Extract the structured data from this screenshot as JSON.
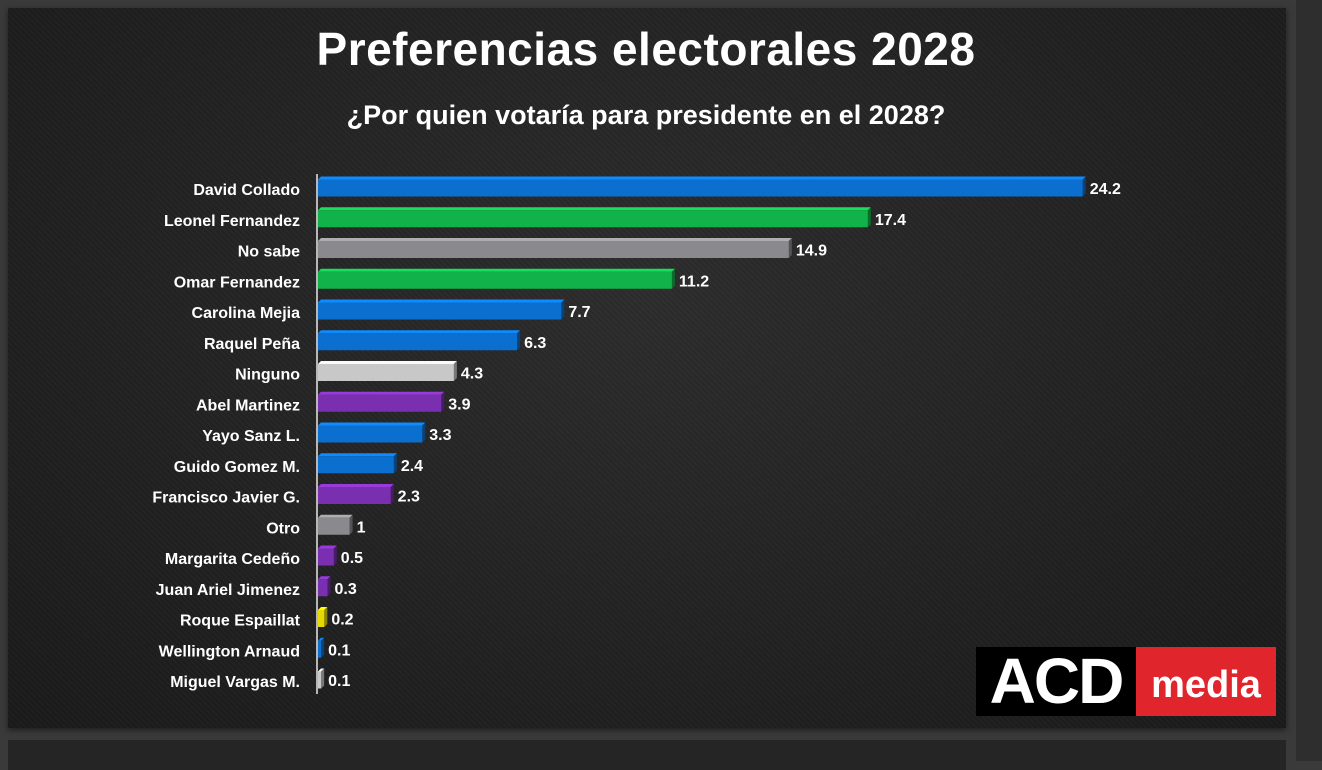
{
  "title": "Preferencias electorales 2028",
  "subtitle": "¿Por quien votaría para presidente en el 2028?",
  "logo": {
    "part1": "ACD",
    "part2": "media"
  },
  "chart_data": {
    "type": "bar",
    "orientation": "horizontal",
    "title": "Preferencias electorales 2028",
    "subtitle": "¿Por quien votaría para presidente en el 2028?",
    "xlim": [
      0,
      25
    ],
    "grid": false,
    "categories": [
      "David Collado",
      "Leonel Fernandez",
      "No sabe",
      "Omar Fernandez",
      "Carolina Mejia",
      "Raquel Peña",
      "Ninguno",
      "Abel Martinez",
      "Yayo Sanz L.",
      "Guido Gomez M.",
      "Francisco Javier G.",
      "Otro",
      "Margarita Cedeño",
      "Juan Ariel Jimenez",
      "Roque Espaillat",
      "Wellington Arnaud",
      "Miguel Vargas M."
    ],
    "values": [
      24.2,
      17.4,
      14.9,
      11.2,
      7.7,
      6.3,
      4.3,
      3.9,
      3.3,
      2.4,
      2.3,
      1,
      0.5,
      0.3,
      0.2,
      0.1,
      0.1
    ],
    "value_labels": [
      "24.2",
      "17.4",
      "14.9",
      "11.2",
      "7.7",
      "6.3",
      "4.3",
      "3.9",
      "3.3",
      "2.4",
      "2.3",
      "1",
      "0.5",
      "0.3",
      "0.2",
      "0.1",
      "0.1"
    ],
    "colors": [
      "#0b6fcf",
      "#12b24a",
      "#8a8a8e",
      "#12b24a",
      "#0b6fcf",
      "#0b6fcf",
      "#c8c8c8",
      "#7a2fb0",
      "#0b6fcf",
      "#0b6fcf",
      "#7a2fb0",
      "#8a8a8e",
      "#7a2fb0",
      "#7a2fb0",
      "#e6d800",
      "#0b6fcf",
      "#c8c8c8"
    ]
  }
}
